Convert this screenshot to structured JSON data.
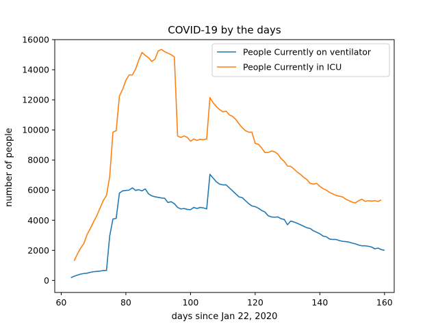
{
  "chart_data": {
    "type": "line",
    "title": "COVID-19 by the days",
    "xlabel": "days since Jan 22, 2020",
    "ylabel": "number of people",
    "xlim": [
      58,
      163
    ],
    "ylim": [
      -800,
      16000
    ],
    "xticks": [
      60,
      80,
      100,
      120,
      140,
      160
    ],
    "yticks": [
      0,
      2000,
      4000,
      6000,
      8000,
      10000,
      12000,
      14000,
      16000
    ],
    "grid": false,
    "legend_position": "top-right",
    "series": [
      {
        "name": "People Currently on ventilator",
        "color": "#1f77b4",
        "points": [
          [
            63,
            180
          ],
          [
            64,
            280
          ],
          [
            65,
            350
          ],
          [
            66,
            420
          ],
          [
            67,
            460
          ],
          [
            68,
            480
          ],
          [
            69,
            540
          ],
          [
            70,
            580
          ],
          [
            71,
            600
          ],
          [
            72,
            620
          ],
          [
            73,
            660
          ],
          [
            74,
            660
          ],
          [
            75,
            2950
          ],
          [
            76,
            4080
          ],
          [
            77,
            4120
          ],
          [
            78,
            5800
          ],
          [
            79,
            5950
          ],
          [
            80,
            5980
          ],
          [
            81,
            6000
          ],
          [
            82,
            6150
          ],
          [
            83,
            5980
          ],
          [
            84,
            6030
          ],
          [
            85,
            5950
          ],
          [
            86,
            6080
          ],
          [
            87,
            5750
          ],
          [
            88,
            5620
          ],
          [
            89,
            5560
          ],
          [
            90,
            5520
          ],
          [
            91,
            5480
          ],
          [
            92,
            5460
          ],
          [
            93,
            5180
          ],
          [
            94,
            5230
          ],
          [
            95,
            5100
          ],
          [
            96,
            4850
          ],
          [
            97,
            4750
          ],
          [
            98,
            4780
          ],
          [
            99,
            4720
          ],
          [
            100,
            4700
          ],
          [
            101,
            4850
          ],
          [
            102,
            4780
          ],
          [
            103,
            4850
          ],
          [
            104,
            4820
          ],
          [
            105,
            4750
          ],
          [
            106,
            7050
          ],
          [
            107,
            6800
          ],
          [
            108,
            6550
          ],
          [
            109,
            6400
          ],
          [
            110,
            6350
          ],
          [
            111,
            6350
          ],
          [
            112,
            6150
          ],
          [
            113,
            5950
          ],
          [
            114,
            5750
          ],
          [
            115,
            5550
          ],
          [
            116,
            5500
          ],
          [
            117,
            5300
          ],
          [
            118,
            5100
          ],
          [
            119,
            4950
          ],
          [
            120,
            4900
          ],
          [
            121,
            4800
          ],
          [
            122,
            4650
          ],
          [
            123,
            4550
          ],
          [
            124,
            4300
          ],
          [
            125,
            4220
          ],
          [
            126,
            4200
          ],
          [
            127,
            4220
          ],
          [
            128,
            4100
          ],
          [
            129,
            4050
          ],
          [
            130,
            3700
          ],
          [
            131,
            3950
          ],
          [
            132,
            3880
          ],
          [
            133,
            3800
          ],
          [
            134,
            3700
          ],
          [
            135,
            3600
          ],
          [
            136,
            3500
          ],
          [
            137,
            3450
          ],
          [
            138,
            3300
          ],
          [
            139,
            3200
          ],
          [
            140,
            3100
          ],
          [
            141,
            2950
          ],
          [
            142,
            2900
          ],
          [
            143,
            2750
          ],
          [
            144,
            2720
          ],
          [
            145,
            2720
          ],
          [
            146,
            2650
          ],
          [
            147,
            2600
          ],
          [
            148,
            2580
          ],
          [
            149,
            2550
          ],
          [
            150,
            2480
          ],
          [
            151,
            2430
          ],
          [
            152,
            2350
          ],
          [
            153,
            2300
          ],
          [
            154,
            2300
          ],
          [
            155,
            2270
          ],
          [
            156,
            2220
          ],
          [
            157,
            2100
          ],
          [
            158,
            2150
          ],
          [
            159,
            2050
          ],
          [
            160,
            2000
          ]
        ]
      },
      {
        "name": "People Currently in ICU",
        "color": "#ff7f0e",
        "points": [
          [
            64,
            1300
          ],
          [
            65,
            1750
          ],
          [
            66,
            2150
          ],
          [
            67,
            2450
          ],
          [
            68,
            3050
          ],
          [
            69,
            3450
          ],
          [
            70,
            3900
          ],
          [
            71,
            4300
          ],
          [
            72,
            4800
          ],
          [
            73,
            5300
          ],
          [
            74,
            5650
          ],
          [
            75,
            6900
          ],
          [
            76,
            9850
          ],
          [
            77,
            9950
          ],
          [
            78,
            12250
          ],
          [
            79,
            12700
          ],
          [
            80,
            13300
          ],
          [
            81,
            13650
          ],
          [
            82,
            13650
          ],
          [
            83,
            14050
          ],
          [
            84,
            14650
          ],
          [
            85,
            15150
          ],
          [
            86,
            14950
          ],
          [
            87,
            14800
          ],
          [
            88,
            14550
          ],
          [
            89,
            14700
          ],
          [
            90,
            15250
          ],
          [
            91,
            15350
          ],
          [
            92,
            15200
          ],
          [
            93,
            15100
          ],
          [
            94,
            15000
          ],
          [
            95,
            14850
          ],
          [
            96,
            9600
          ],
          [
            97,
            9500
          ],
          [
            98,
            9600
          ],
          [
            99,
            9500
          ],
          [
            100,
            9250
          ],
          [
            101,
            9400
          ],
          [
            102,
            9300
          ],
          [
            103,
            9380
          ],
          [
            104,
            9350
          ],
          [
            105,
            9400
          ],
          [
            106,
            12150
          ],
          [
            107,
            11800
          ],
          [
            108,
            11550
          ],
          [
            109,
            11350
          ],
          [
            110,
            11200
          ],
          [
            111,
            11250
          ],
          [
            112,
            11000
          ],
          [
            113,
            10900
          ],
          [
            114,
            10700
          ],
          [
            115,
            10400
          ],
          [
            116,
            10150
          ],
          [
            117,
            9950
          ],
          [
            118,
            9850
          ],
          [
            119,
            9850
          ],
          [
            120,
            9100
          ],
          [
            121,
            9050
          ],
          [
            122,
            8800
          ],
          [
            123,
            8500
          ],
          [
            124,
            8500
          ],
          [
            125,
            8600
          ],
          [
            126,
            8550
          ],
          [
            127,
            8400
          ],
          [
            128,
            8100
          ],
          [
            129,
            7900
          ],
          [
            130,
            7600
          ],
          [
            131,
            7580
          ],
          [
            132,
            7400
          ],
          [
            133,
            7200
          ],
          [
            134,
            7050
          ],
          [
            135,
            6850
          ],
          [
            136,
            6700
          ],
          [
            137,
            6450
          ],
          [
            138,
            6400
          ],
          [
            139,
            6450
          ],
          [
            140,
            6250
          ],
          [
            141,
            6100
          ],
          [
            142,
            6000
          ],
          [
            143,
            5850
          ],
          [
            144,
            5750
          ],
          [
            145,
            5650
          ],
          [
            146,
            5600
          ],
          [
            147,
            5550
          ],
          [
            148,
            5400
          ],
          [
            149,
            5300
          ],
          [
            150,
            5200
          ],
          [
            151,
            5150
          ],
          [
            152,
            5300
          ],
          [
            153,
            5400
          ],
          [
            154,
            5250
          ],
          [
            155,
            5300
          ],
          [
            156,
            5270
          ],
          [
            157,
            5300
          ],
          [
            158,
            5250
          ],
          [
            159,
            5350
          ]
        ]
      }
    ]
  }
}
